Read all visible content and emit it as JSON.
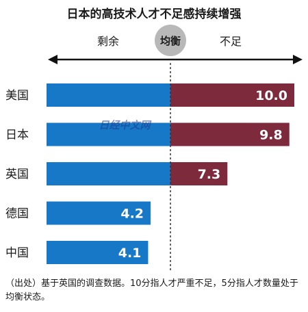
{
  "chart_data": {
    "type": "bar",
    "title": "日本的高技术人才不足感持续增强",
    "axis_left_label": "剩余",
    "axis_center_label": "均衡",
    "axis_right_label": "不足",
    "categories": [
      "美国",
      "日本",
      "英国",
      "德国",
      "中国"
    ],
    "values": [
      10.0,
      9.8,
      7.3,
      4.2,
      4.1
    ],
    "value_labels": [
      "10.0",
      "9.8",
      "7.3",
      "4.2",
      "4.1"
    ],
    "balance_value": 5,
    "xlim": [
      0,
      10.6
    ],
    "colors": {
      "below_balance": "#1878c8",
      "above_balance": "#7d2a3c",
      "divider": "#333333",
      "center_circle": "#b8b8b8"
    },
    "grid": false
  },
  "watermark": "日经中文网",
  "source_note": "（出处）基于英国的调查数据。10分指人才严重不足，5分指人才数量处于均衡状态。"
}
